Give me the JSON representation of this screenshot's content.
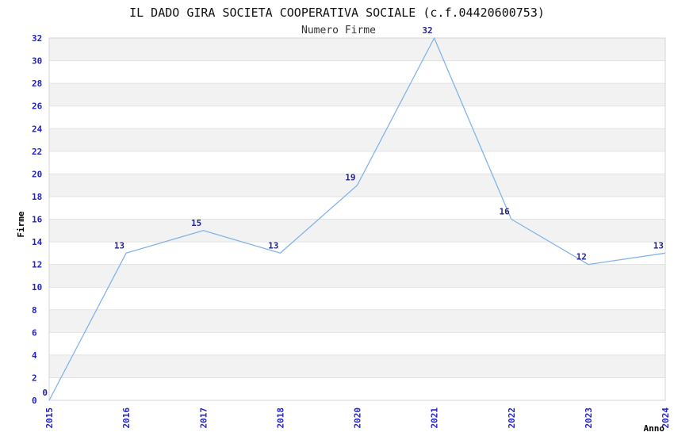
{
  "chart_data": {
    "type": "line",
    "title": "IL DADO GIRA SOCIETA COOPERATIVA SOCIALE (c.f.04420600753)",
    "subtitle": "Numero Firme",
    "xlabel": "Anno",
    "ylabel": "Firme",
    "categories": [
      "2015",
      "2016",
      "2017",
      "2018",
      "2020",
      "2021",
      "2022",
      "2023",
      "2024"
    ],
    "values": [
      0,
      13,
      15,
      13,
      19,
      32,
      16,
      12,
      13
    ],
    "data_labels": [
      "0",
      "13",
      "15",
      "13",
      "19",
      "32",
      "16",
      "12",
      "13"
    ],
    "ylim": [
      0,
      32
    ],
    "ytick_step": 2,
    "yticks": [
      0,
      2,
      4,
      6,
      8,
      10,
      12,
      14,
      16,
      18,
      20,
      22,
      24,
      26,
      28,
      30,
      32
    ],
    "grid": "horizontal-alternating-bands",
    "legend": "none",
    "x_tick_rotation": -90,
    "colors": {
      "line": "#82b4e8",
      "tick_label": "#2222cc",
      "data_label": "#26268c",
      "band_fill": "#f2f2f2",
      "band_alt_fill": "#ffffff",
      "grid_line": "#e2e2e2",
      "frame": "#d4d4d4",
      "background": "#ffffff"
    }
  }
}
